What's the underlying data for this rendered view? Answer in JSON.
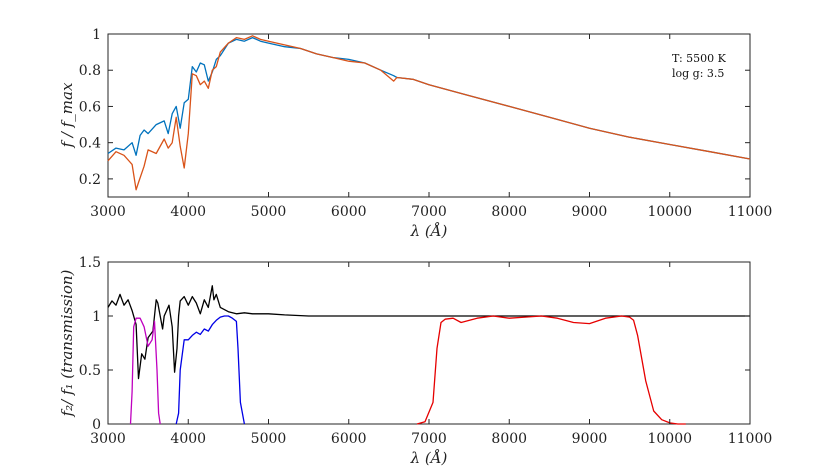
{
  "chart_data": [
    {
      "type": "line",
      "xlabel": "λ (Å)",
      "ylabel": "f / f_max",
      "xlim": [
        3000,
        11000
      ],
      "ylim": [
        0.1,
        1.0
      ],
      "xticks": [
        3000,
        4000,
        5000,
        6000,
        7000,
        8000,
        9000,
        10000,
        11000
      ],
      "yticks": [
        0.2,
        0.4,
        0.6,
        0.8,
        1.0
      ],
      "ytick_labels": [
        "0.2",
        "0.4",
        "0.6",
        "0.8",
        "1"
      ],
      "grid": false,
      "annotations": [
        "T: 5500 K",
        "log g: 3.5"
      ],
      "series": [
        {
          "color": "#0072BD",
          "x": [
            3000,
            3100,
            3200,
            3300,
            3350,
            3400,
            3450,
            3500,
            3600,
            3700,
            3750,
            3800,
            3850,
            3900,
            3950,
            4000,
            4050,
            4100,
            4150,
            4200,
            4250,
            4300,
            4350,
            4400,
            4500,
            4600,
            4700,
            4800,
            4900,
            5000,
            5200,
            5400,
            5600,
            5800,
            6000,
            6200,
            6400,
            6560,
            6600,
            6800,
            7000,
            7500,
            8000,
            8500,
            9000,
            9500,
            10000,
            10500,
            11000
          ],
          "y": [
            0.34,
            0.37,
            0.36,
            0.4,
            0.33,
            0.44,
            0.47,
            0.45,
            0.5,
            0.52,
            0.45,
            0.56,
            0.6,
            0.48,
            0.62,
            0.64,
            0.82,
            0.79,
            0.84,
            0.83,
            0.74,
            0.79,
            0.86,
            0.88,
            0.95,
            0.97,
            0.96,
            0.98,
            0.96,
            0.95,
            0.93,
            0.92,
            0.89,
            0.87,
            0.86,
            0.84,
            0.8,
            0.77,
            0.76,
            0.75,
            0.72,
            0.66,
            0.6,
            0.54,
            0.48,
            0.43,
            0.39,
            0.35,
            0.31
          ]
        },
        {
          "color": "#D95319",
          "x": [
            3000,
            3100,
            3200,
            3300,
            3350,
            3380,
            3450,
            3500,
            3600,
            3700,
            3750,
            3800,
            3850,
            3900,
            3950,
            4000,
            4050,
            4100,
            4150,
            4200,
            4250,
            4300,
            4350,
            4400,
            4500,
            4600,
            4700,
            4800,
            4900,
            5000,
            5200,
            5400,
            5600,
            5800,
            6000,
            6200,
            6400,
            6560,
            6600,
            6800,
            7000,
            7500,
            8000,
            8500,
            9000,
            9500,
            10000,
            10500,
            11000
          ],
          "y": [
            0.3,
            0.35,
            0.33,
            0.28,
            0.14,
            0.18,
            0.27,
            0.36,
            0.34,
            0.42,
            0.37,
            0.4,
            0.54,
            0.38,
            0.26,
            0.45,
            0.78,
            0.77,
            0.72,
            0.74,
            0.7,
            0.8,
            0.82,
            0.9,
            0.95,
            0.98,
            0.97,
            0.99,
            0.97,
            0.96,
            0.94,
            0.92,
            0.89,
            0.87,
            0.85,
            0.84,
            0.8,
            0.74,
            0.76,
            0.75,
            0.72,
            0.66,
            0.6,
            0.54,
            0.48,
            0.43,
            0.39,
            0.35,
            0.31
          ]
        }
      ]
    },
    {
      "type": "line",
      "xlabel": "λ (Å)",
      "ylabel": "f₂/ f₁ (transmission)",
      "xlim": [
        3000,
        11000
      ],
      "ylim": [
        0,
        1.5
      ],
      "xticks": [
        3000,
        4000,
        5000,
        6000,
        7000,
        8000,
        9000,
        10000,
        11000
      ],
      "yticks": [
        0,
        0.5,
        1,
        1.5
      ],
      "ytick_labels": [
        "0",
        "0.5",
        "1",
        "1.5"
      ],
      "grid": false,
      "series": [
        {
          "color": "#000000",
          "x": [
            3000,
            3050,
            3100,
            3150,
            3200,
            3250,
            3300,
            3350,
            3380,
            3420,
            3460,
            3500,
            3560,
            3600,
            3620,
            3680,
            3700,
            3760,
            3800,
            3830,
            3860,
            3880,
            3900,
            3950,
            4000,
            4050,
            4100,
            4150,
            4200,
            4250,
            4300,
            4320,
            4350,
            4400,
            4500,
            4600,
            4700,
            4800,
            5000,
            5200,
            5500,
            6000,
            6500,
            7000,
            8000,
            9000,
            10000,
            11000
          ],
          "y": [
            1.08,
            1.14,
            1.1,
            1.2,
            1.1,
            1.15,
            1.05,
            0.92,
            0.42,
            0.65,
            0.6,
            0.8,
            0.86,
            1.15,
            1.12,
            0.88,
            1.0,
            1.1,
            0.9,
            0.48,
            0.7,
            1.0,
            1.14,
            1.18,
            1.1,
            1.18,
            1.12,
            1.02,
            1.15,
            1.08,
            1.28,
            1.15,
            1.2,
            1.08,
            1.04,
            1.02,
            1.03,
            1.02,
            1.02,
            1.01,
            1.0,
            1.0,
            1.0,
            1.0,
            1.0,
            1.0,
            1.0,
            1.0
          ]
        },
        {
          "color": "#BF00BF",
          "x": [
            3280,
            3300,
            3320,
            3350,
            3400,
            3450,
            3500,
            3550,
            3580,
            3610,
            3630,
            3650
          ],
          "y": [
            0.0,
            0.3,
            0.9,
            0.98,
            0.98,
            0.9,
            0.72,
            0.78,
            0.95,
            0.5,
            0.1,
            0.0
          ]
        },
        {
          "color": "#0000E6",
          "x": [
            3850,
            3880,
            3900,
            3950,
            4000,
            4050,
            4100,
            4150,
            4200,
            4250,
            4300,
            4350,
            4400,
            4450,
            4500,
            4550,
            4600,
            4620,
            4650,
            4700
          ],
          "y": [
            0.0,
            0.1,
            0.5,
            0.78,
            0.78,
            0.82,
            0.85,
            0.83,
            0.88,
            0.86,
            0.92,
            0.96,
            0.99,
            1.0,
            1.0,
            0.98,
            0.95,
            0.7,
            0.2,
            0.0
          ]
        },
        {
          "color": "#E60000",
          "x": [
            6850,
            6950,
            7050,
            7100,
            7150,
            7200,
            7300,
            7400,
            7600,
            7800,
            8000,
            8200,
            8400,
            8600,
            8800,
            9000,
            9200,
            9400,
            9500,
            9550,
            9600,
            9700,
            9800,
            9900,
            10000,
            10100,
            10200
          ],
          "y": [
            0.0,
            0.02,
            0.2,
            0.7,
            0.94,
            0.97,
            0.98,
            0.94,
            0.98,
            1.0,
            0.98,
            0.99,
            1.0,
            0.98,
            0.94,
            0.93,
            0.98,
            1.0,
            0.99,
            0.96,
            0.82,
            0.4,
            0.12,
            0.04,
            0.01,
            0.0,
            0.0
          ]
        }
      ]
    }
  ]
}
